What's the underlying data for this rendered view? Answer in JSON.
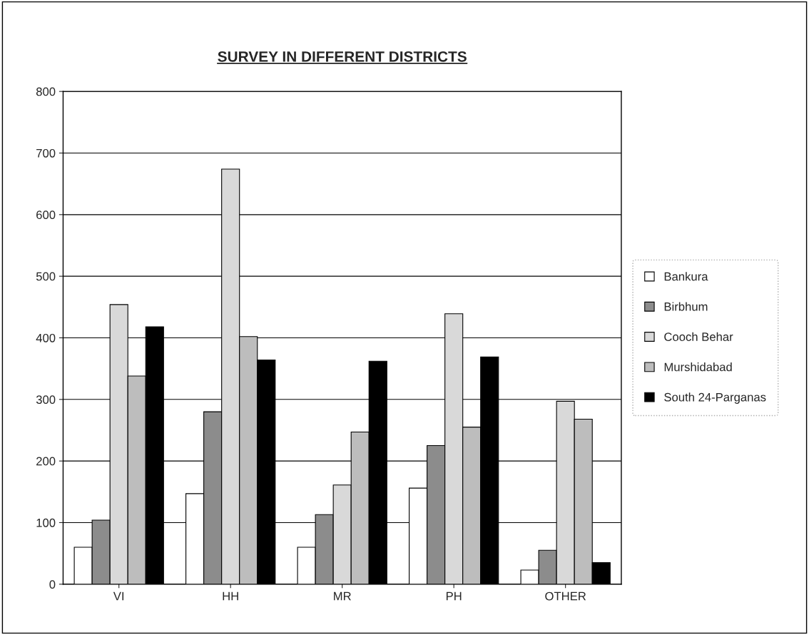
{
  "chart_data": {
    "type": "bar",
    "title": "SURVEY IN DIFFERENT DISTRICTS",
    "categories": [
      "VI",
      "HH",
      "MR",
      "PH",
      "OTHER"
    ],
    "series": [
      {
        "name": "Bankura",
        "color": "#ffffff",
        "values": [
          60,
          147,
          60,
          156,
          23
        ]
      },
      {
        "name": "Birbhum",
        "color": "#8c8c8c",
        "values": [
          104,
          280,
          113,
          225,
          55
        ]
      },
      {
        "name": "Cooch Behar",
        "color": "#d9d9d9",
        "values": [
          454,
          674,
          161,
          439,
          297
        ]
      },
      {
        "name": "Murshidabad",
        "color": "#bdbdbd",
        "values": [
          338,
          402,
          247,
          255,
          268
        ]
      },
      {
        "name": "South 24-Parganas",
        "color": "#000000",
        "values": [
          418,
          364,
          362,
          369,
          35
        ]
      }
    ],
    "ylim": [
      0,
      800
    ],
    "yticks": [
      0,
      100,
      200,
      300,
      400,
      500,
      600,
      700,
      800
    ],
    "grid": "y",
    "legend": "right"
  }
}
